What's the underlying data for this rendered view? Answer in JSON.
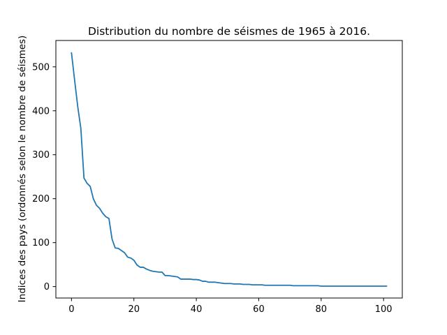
{
  "chart_data": {
    "type": "line",
    "title": "Distribution du nombre de séismes de 1965 à 2016.",
    "xlabel": "",
    "ylabel": "Indices des pays (ordonnés selon le nombre de séismes)",
    "xlim": [
      -5,
      106
    ],
    "ylim": [
      -26,
      560
    ],
    "xticks": [
      0,
      20,
      40,
      60,
      80,
      100
    ],
    "yticks": [
      0,
      100,
      200,
      300,
      400,
      500
    ],
    "grid": false,
    "legend": "none",
    "series": [
      {
        "color": "#1f77b4",
        "x": [
          0,
          1,
          2,
          3,
          4,
          5,
          6,
          7,
          8,
          9,
          10,
          11,
          12,
          13,
          14,
          15,
          16,
          17,
          18,
          19,
          20,
          21,
          22,
          23,
          24,
          25,
          26,
          27,
          28,
          29,
          30,
          31,
          32,
          33,
          34,
          35,
          36,
          37,
          38,
          39,
          40,
          41,
          42,
          43,
          44,
          45,
          46,
          47,
          48,
          49,
          50,
          51,
          52,
          53,
          54,
          55,
          56,
          57,
          58,
          59,
          60,
          61,
          62,
          63,
          64,
          65,
          66,
          67,
          68,
          69,
          70,
          71,
          72,
          73,
          74,
          75,
          76,
          77,
          78,
          79,
          80,
          81,
          82,
          83,
          84,
          85,
          86,
          87,
          88,
          89,
          90,
          91,
          92,
          93,
          94,
          95,
          96,
          97,
          98,
          99,
          100,
          101
        ],
        "values": [
          532,
          470,
          410,
          360,
          247,
          235,
          228,
          200,
          185,
          178,
          167,
          159,
          155,
          108,
          88,
          87,
          82,
          77,
          67,
          65,
          60,
          49,
          44,
          44,
          40,
          37,
          35,
          34,
          33,
          33,
          25,
          25,
          24,
          23,
          22,
          17,
          17,
          17,
          17,
          16,
          16,
          15,
          12,
          12,
          10,
          10,
          10,
          9,
          8,
          7,
          7,
          7,
          6,
          6,
          6,
          5,
          5,
          5,
          4,
          4,
          4,
          4,
          3,
          3,
          3,
          3,
          3,
          3,
          3,
          3,
          3,
          2,
          2,
          2,
          2,
          2,
          2,
          2,
          2,
          2,
          1,
          1,
          1,
          1,
          1,
          1,
          1,
          1,
          1,
          1,
          1,
          1,
          1,
          1,
          1,
          1,
          1,
          1,
          1,
          1,
          1,
          1
        ]
      }
    ]
  }
}
